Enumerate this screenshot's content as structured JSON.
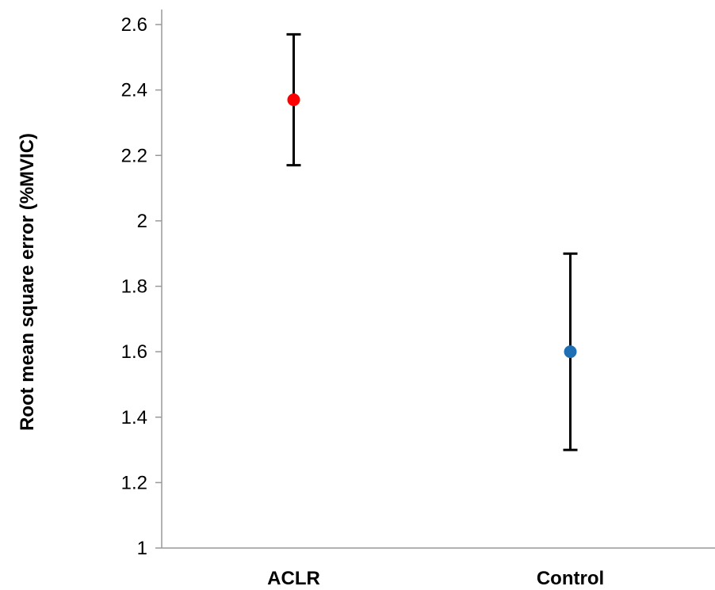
{
  "chart_data": {
    "type": "scatter",
    "title": "",
    "xlabel": "",
    "ylabel": "Root mean square error (%MVIC)",
    "ylim": [
      1,
      2.6
    ],
    "yticks": [
      1,
      1.2,
      1.4,
      1.6,
      1.8,
      2,
      2.2,
      2.4,
      2.6
    ],
    "yticklabels": [
      "1",
      "1.2",
      "1.4",
      "1.6",
      "1.8",
      "2",
      "2.2",
      "2.4",
      "2.6"
    ],
    "categories": [
      "ACLR",
      "Control"
    ],
    "points": [
      {
        "category": "ACLR",
        "value": 2.37,
        "error_low": 2.17,
        "error_high": 2.57,
        "color": "#ff0000"
      },
      {
        "category": "Control",
        "value": 1.6,
        "error_low": 1.3,
        "error_high": 1.9,
        "color": "#1f6fb5"
      }
    ],
    "grid": false,
    "legend": "none"
  }
}
